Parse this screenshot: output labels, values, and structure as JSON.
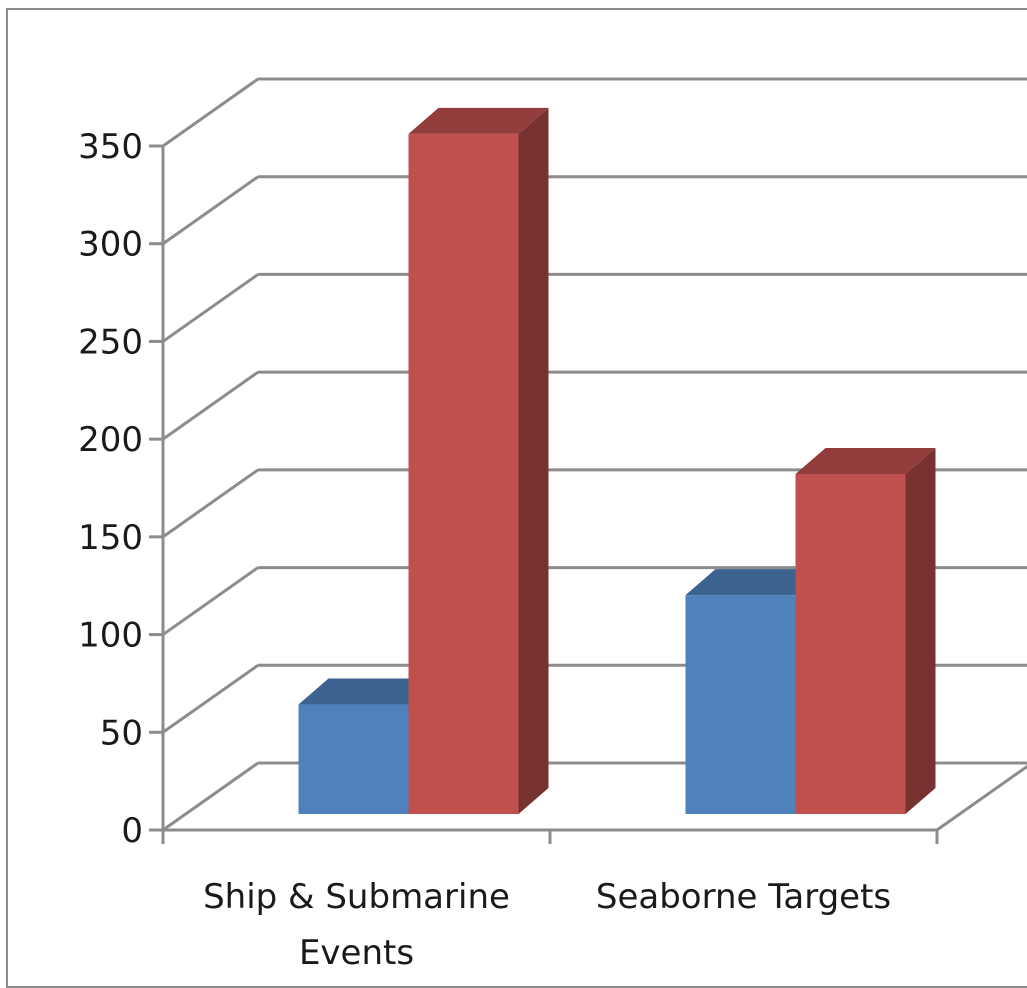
{
  "chart_data": {
    "type": "bar",
    "style": "3d-clustered-column",
    "categories": [
      "Ship & Submarine Events",
      "Seaborne Targets"
    ],
    "category_lines": [
      [
        "Ship & Submarine",
        "Events"
      ],
      [
        "Seaborne Targets"
      ]
    ],
    "series": [
      {
        "color": "#4F81BD",
        "values": [
          56,
          112
        ]
      },
      {
        "color": "#C0504D",
        "values": [
          348,
          174
        ]
      }
    ],
    "ylim": [
      0,
      350
    ],
    "yticks": [
      0,
      50,
      100,
      150,
      200,
      250,
      300,
      350
    ],
    "grid": true,
    "title": "",
    "xlabel": "",
    "ylabel": ""
  }
}
